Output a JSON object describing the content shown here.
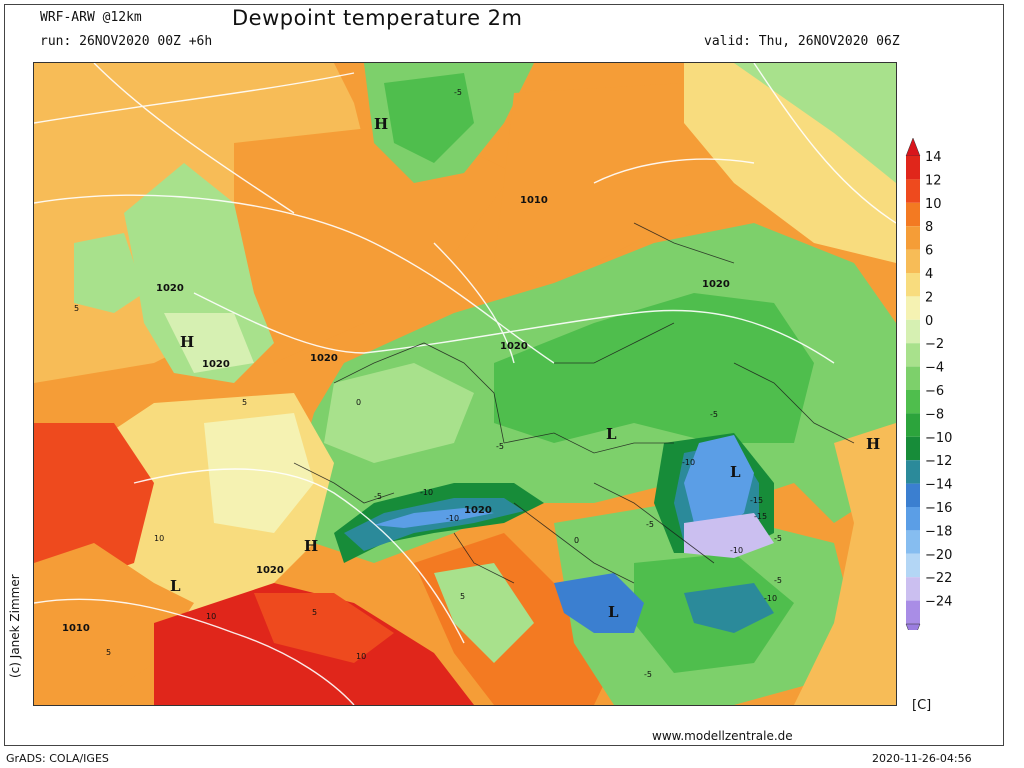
{
  "header": {
    "model": "WRF-ARW @12km",
    "run": "run: 26NOV2020 00Z +6h",
    "title": "Dewpoint temperature 2m",
    "valid": "valid: Thu, 26NOV2020 06Z"
  },
  "credit": "(c) Janek Zimmer",
  "website": "www.modellzentrale.de",
  "footer": {
    "software": "GrADS: COLA/IGES",
    "timestamp": "2020-11-26-04:56"
  },
  "legend": {
    "unit": "[C]",
    "levels": [
      {
        "label": "14",
        "color": "#e0261b"
      },
      {
        "label": "12",
        "color": "#ee4a1e"
      },
      {
        "label": "10",
        "color": "#f37a22"
      },
      {
        "label": "8",
        "color": "#f59d37"
      },
      {
        "label": "6",
        "color": "#f7bc57"
      },
      {
        "label": "4",
        "color": "#f8dc7e"
      },
      {
        "label": "2",
        "color": "#f5f2b2"
      },
      {
        "label": "0",
        "color": "#d6f0b2"
      },
      {
        "label": "−2",
        "color": "#a8e18c"
      },
      {
        "label": "−4",
        "color": "#7dd06b"
      },
      {
        "label": "−6",
        "color": "#4fbe4d"
      },
      {
        "label": "−8",
        "color": "#2ca43c"
      },
      {
        "label": "−10",
        "color": "#178c39"
      },
      {
        "label": "−12",
        "color": "#2b8a9a"
      },
      {
        "label": "−14",
        "color": "#3b7fd0"
      },
      {
        "label": "−16",
        "color": "#5b9ee6"
      },
      {
        "label": "−18",
        "color": "#86bdf0"
      },
      {
        "label": "−20",
        "color": "#b3d6f5"
      },
      {
        "label": "−22",
        "color": "#cbbff0"
      },
      {
        "label": "−24",
        "color": "#a98de6"
      }
    ],
    "top_color": "#d8151c",
    "bottom_color": "#9b7de0"
  },
  "map": {
    "pressure_labels": [
      "1010",
      "1020",
      "1020",
      "1020",
      "1020",
      "1020",
      "1020",
      "1020",
      "1010"
    ],
    "pressure_centers": [
      "H",
      "H",
      "H",
      "H",
      "L",
      "L",
      "L",
      "L"
    ],
    "contour_values": [
      "-5",
      "5",
      "5",
      "-5",
      "-10",
      "-10",
      "-10",
      "-5",
      "-5",
      "-5",
      "-15",
      "-15",
      "-10",
      "-5",
      "-10",
      "-5",
      "10",
      "10",
      "10",
      "5",
      "5",
      "0",
      "0",
      "5",
      "-5"
    ]
  }
}
